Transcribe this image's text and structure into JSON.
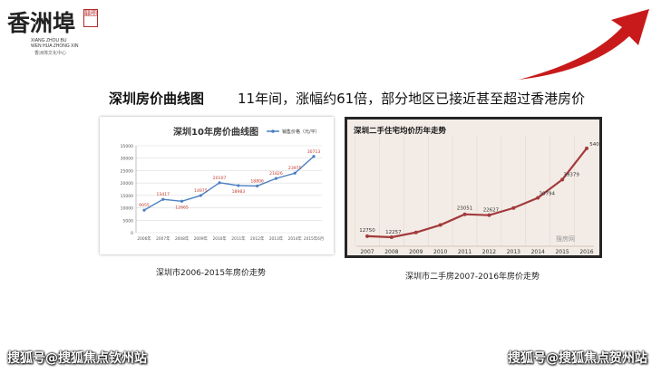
{
  "logo": {
    "title": "香洲埠",
    "seal": "囍图",
    "en_line1": "XIANG ZHOU BU",
    "en_line2": "WEN HUA ZHONG XIN",
    "cn_line": "香洲埠文化中心"
  },
  "colors": {
    "arrow": "#c81a1a",
    "left_line": "#4a7fc1",
    "left_label": "#c0392b",
    "right_line": "#a23a3c"
  },
  "heading": "深圳房价曲线图",
  "subheading": "11年间，涨幅约61倍，部分地区已接近甚至超过香港房价",
  "chart_data": [
    {
      "type": "line",
      "title": "深圳10年房价曲线图",
      "legend": "销售价格（元/平）",
      "legend_position": "top-right",
      "grid": true,
      "categories": [
        "2006年",
        "2007年",
        "2008年",
        "2009年",
        "2010年",
        "2011年",
        "2012年",
        "2013年",
        "2014年",
        "2015年6月"
      ],
      "series": [
        {
          "name": "销售价格（元/平）",
          "values": [
            9055,
            13417,
            12665,
            14975,
            20107,
            18983,
            18806,
            21826,
            23975,
            30713
          ]
        }
      ],
      "ylim": [
        0,
        35000
      ],
      "yticks": [
        "0",
        "5000",
        "10000",
        "15000",
        "20000",
        "25000",
        "30000",
        "35000"
      ]
    },
    {
      "type": "line",
      "title": "深圳二手住宅均价历年走势",
      "grid": true,
      "categories": [
        "2007",
        "2008",
        "2009",
        "2010",
        "2011",
        "2012",
        "2013",
        "2014",
        "2015",
        "2016"
      ],
      "series": [
        {
          "values": [
            12750,
            12257,
            14500,
            18000,
            23051,
            22627,
            26000,
            30794,
            39379,
            54097
          ]
        }
      ],
      "labels": [
        "12750",
        "12257",
        "",
        "",
        "23051",
        "22627",
        "",
        "30794",
        "39379",
        "54097"
      ],
      "ylim": [
        8000,
        60000
      ],
      "watermark": "搜房网"
    }
  ],
  "captions": {
    "left": "深圳市2006-2015年房价走势",
    "right": "深圳市二手房2007-2016年房价走势"
  },
  "watermarks": {
    "left": "搜狐号@搜狐焦点钦州站",
    "right": "搜狐号@搜狐焦点贺州站"
  }
}
